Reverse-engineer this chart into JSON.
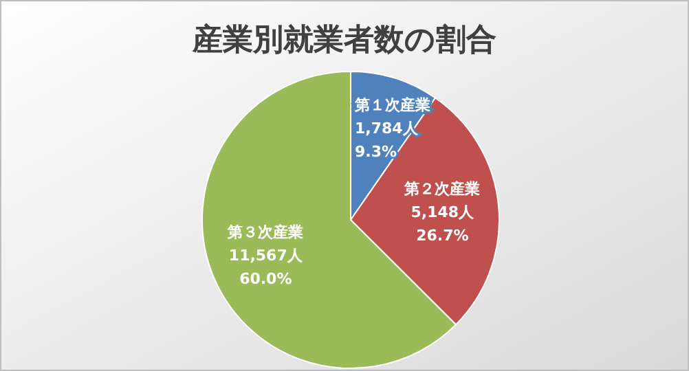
{
  "chart_data": {
    "type": "pie",
    "title": "産業別就業者数の割合",
    "categories": [
      "第１次産業",
      "第２次産業",
      "第３次産業"
    ],
    "values": [
      1784,
      5148,
      11567
    ],
    "colors": [
      "#4f81bd",
      "#c0504d",
      "#9bbb59"
    ],
    "value_labels": [
      "1,784人",
      "5,148人",
      "11,567人"
    ],
    "annotations": [
      {
        "text": "9.3%",
        "x": "第１次産業"
      },
      {
        "text": "26.7%",
        "x": "第２次産業"
      },
      {
        "text": "60.0%",
        "x": "第３次産業"
      }
    ]
  }
}
